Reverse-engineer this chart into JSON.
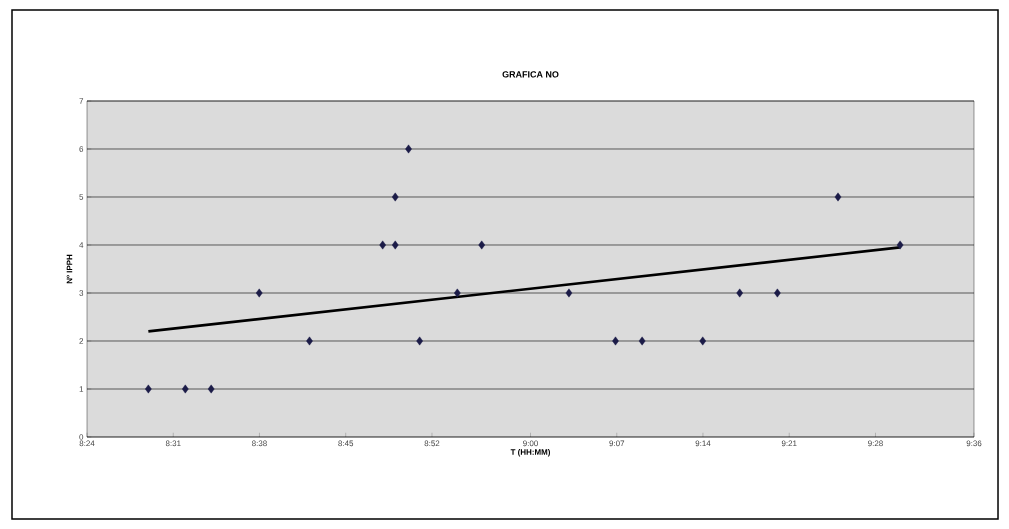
{
  "chart_data": {
    "type": "scatter",
    "title": "GRAFICA NO",
    "xlabel": "T (HH:MM)",
    "ylabel": "Nº IPPH",
    "series": [
      {
        "color": "#1c1c48",
        "x": [
          8.483,
          8.533,
          8.568,
          8.633,
          8.701,
          8.8,
          8.817,
          8.817,
          8.835,
          8.85,
          8.901,
          8.934,
          9.052,
          9.115,
          9.151,
          9.233,
          9.283,
          9.334,
          9.416,
          9.5
        ],
        "values": [
          1,
          1,
          1,
          3,
          2,
          4,
          4,
          5,
          6,
          2,
          3,
          4,
          3,
          2,
          2,
          2,
          3,
          3,
          5,
          4
        ]
      },
      {
        "type": "line",
        "marker": "none",
        "color": "#000000",
        "x": [
          8.483,
          9.5
        ],
        "values": [
          2.2,
          3.95
        ]
      }
    ],
    "xlim": [
      8.4,
      9.6
    ],
    "ylim": [
      0,
      7
    ],
    "xticks": [
      {
        "value": 8.4,
        "label": "8:24"
      },
      {
        "value": 8.5167,
        "label": "8:31"
      },
      {
        "value": 8.6333,
        "label": "8:38"
      },
      {
        "value": 8.75,
        "label": "8:45"
      },
      {
        "value": 8.8667,
        "label": "8:52"
      },
      {
        "value": 9.0,
        "label": "9:00"
      },
      {
        "value": 9.1167,
        "label": "9:07"
      },
      {
        "value": 9.2333,
        "label": "9:14"
      },
      {
        "value": 9.35,
        "label": "9:21"
      },
      {
        "value": 9.4667,
        "label": "9:28"
      },
      {
        "value": 9.6,
        "label": "9:36"
      }
    ],
    "yticks": [
      0,
      1,
      2,
      3,
      4,
      5,
      6,
      7
    ],
    "grid": "y",
    "marker": "diamond"
  }
}
